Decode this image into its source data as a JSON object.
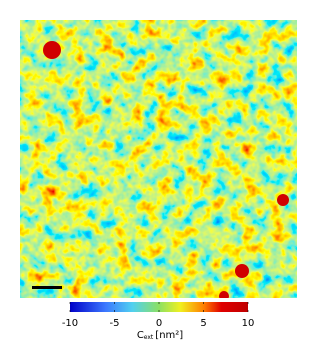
{
  "chart_data": {
    "type": "heatmap",
    "clim": [
      -10,
      10
    ],
    "cticks": [
      -10,
      -5,
      0,
      5,
      10
    ],
    "colorbar_label": {
      "symbol": "C",
      "subscript": "ext",
      "unit": "[nm²]"
    }
  }
}
